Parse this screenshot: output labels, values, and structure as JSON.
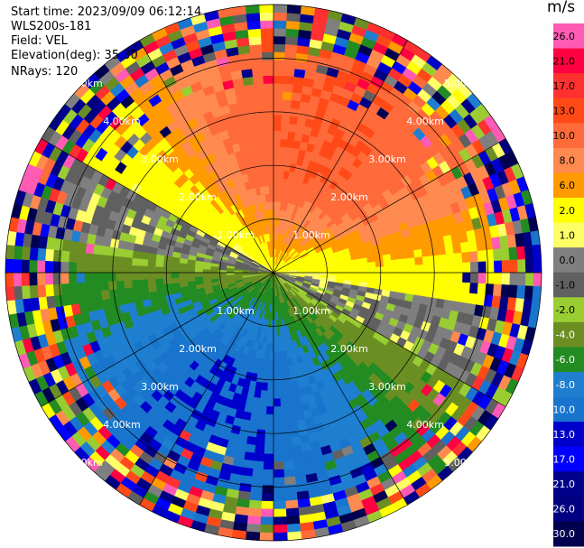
{
  "info": {
    "start_time": "Start time: 2023/09/09 06:12:14",
    "instrument": "WLS200s-181",
    "field": "Field: VEL",
    "elevation": "Elevation(deg): 35.30",
    "nrays": "NRays: 120"
  },
  "colorbar": {
    "unit": "m/s",
    "levels": [
      {
        "label": "26.0",
        "color": "#ff5ab4"
      },
      {
        "label": "21.0",
        "color": "#ff0040"
      },
      {
        "label": "17.0",
        "color": "#ff3030"
      },
      {
        "label": "13.0",
        "color": "#ff4a18"
      },
      {
        "label": "10.0",
        "color": "#ff6a3a"
      },
      {
        "label": "8.0",
        "color": "#ff8a50"
      },
      {
        "label": "6.0",
        "color": "#ff9a00"
      },
      {
        "label": "2.0",
        "color": "#ffff00"
      },
      {
        "label": "1.0",
        "color": "#ffff66"
      },
      {
        "label": "0.0",
        "color": "#7f7f7f"
      },
      {
        "label": "-1.0",
        "color": "#606060"
      },
      {
        "label": "-2.0",
        "color": "#9acd32"
      },
      {
        "label": "-4.0",
        "color": "#6b8e23"
      },
      {
        "label": "-6.0",
        "color": "#228b22"
      },
      {
        "label": "-8.0",
        "color": "#1e7fd0"
      },
      {
        "label": "-10.0",
        "color": "#1874cd"
      },
      {
        "label": "-13.0",
        "color": "#0000cd"
      },
      {
        "label": "-17.0",
        "color": "#0000ff"
      },
      {
        "label": "-21.0",
        "color": "#00008b"
      },
      {
        "label": "-26.0",
        "color": "#000080"
      },
      {
        "label": "-30.0",
        "color": "#000050"
      }
    ]
  },
  "chart_data": {
    "type": "heatmap",
    "projection": "polar-ppi",
    "field": "VEL",
    "unit": "m/s",
    "color_range": [
      -30,
      30
    ],
    "range_rings_km": [
      1.0,
      2.0,
      3.0,
      4.0,
      5.0
    ],
    "ring_labels": [
      "1.00km",
      "2.00km",
      "3.00km",
      "4.00km",
      "5.00km"
    ],
    "nrays": 120,
    "max_range_km": 5.0,
    "noise_beyond_km": 4.2,
    "velocity_pattern": {
      "positive_peak_direction": "north-northeast",
      "negative_peak_direction": "south-southwest",
      "peak_positive_ms": 13.0,
      "peak_negative_ms": -10.0
    },
    "grid": true,
    "legend": "right"
  }
}
